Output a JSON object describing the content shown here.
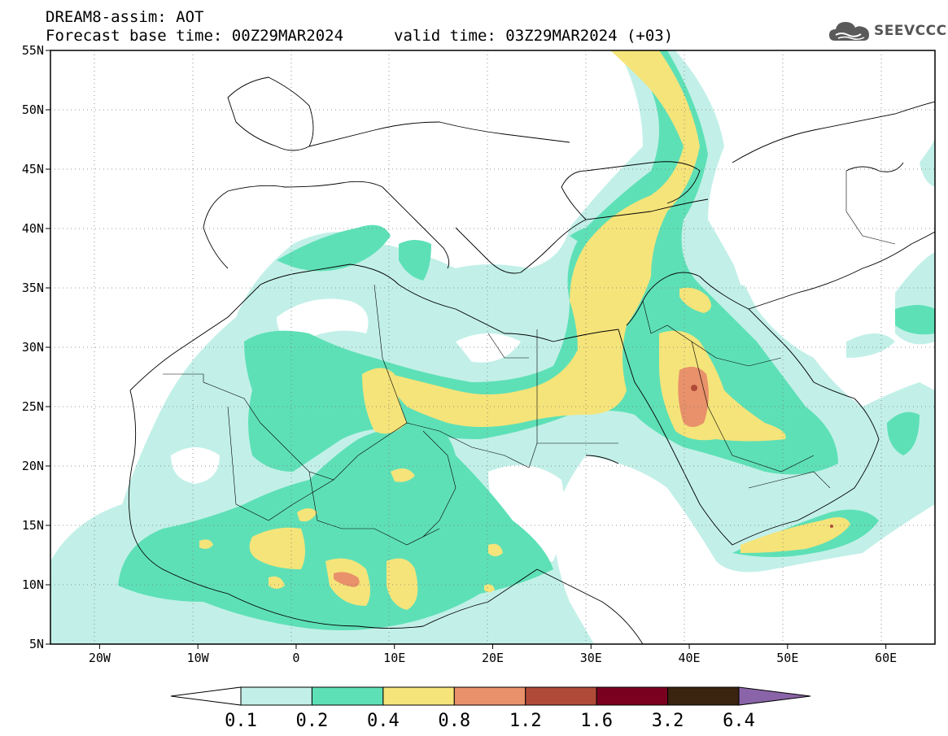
{
  "header": {
    "title": "DREAM8-assim: AOT",
    "base_time": "Forecast base time: 00Z29MAR2024",
    "valid_time": "valid time: 03Z29MAR2024 (+03)"
  },
  "logo": {
    "text": "SEEVCCC",
    "icon": "cloud-icon"
  },
  "map": {
    "lon_range": [
      -25,
      65
    ],
    "lat_range": [
      5,
      55
    ],
    "lat_ticks": [
      {
        "label": "55N",
        "lat": 55
      },
      {
        "label": "50N",
        "lat": 50
      },
      {
        "label": "45N",
        "lat": 45
      },
      {
        "label": "40N",
        "lat": 40
      },
      {
        "label": "35N",
        "lat": 35
      },
      {
        "label": "30N",
        "lat": 30
      },
      {
        "label": "25N",
        "lat": 25
      },
      {
        "label": "20N",
        "lat": 20
      },
      {
        "label": "15N",
        "lat": 15
      },
      {
        "label": "10N",
        "lat": 10
      },
      {
        "label": "5N",
        "lat": 5
      }
    ],
    "lon_ticks": [
      {
        "label": "20W",
        "lon": -20
      },
      {
        "label": "10W",
        "lon": -10
      },
      {
        "label": "0",
        "lon": 0
      },
      {
        "label": "10E",
        "lon": 10
      },
      {
        "label": "20E",
        "lon": 20
      },
      {
        "label": "30E",
        "lon": 30
      },
      {
        "label": "40E",
        "lon": 40
      },
      {
        "label": "50E",
        "lon": 50
      },
      {
        "label": "60E",
        "lon": 60
      }
    ],
    "gridlines": "dotted"
  },
  "colorbar": {
    "colors": [
      "#c2f0e8",
      "#5ee0b6",
      "#f5e47a",
      "#e8916a",
      "#b04a38",
      "#7a0020",
      "#3a2410",
      "#8a64a8"
    ],
    "labels": [
      "0.1",
      "0.2",
      "0.4",
      "0.8",
      "1.2",
      "1.6",
      "3.2",
      "6.4"
    ]
  }
}
